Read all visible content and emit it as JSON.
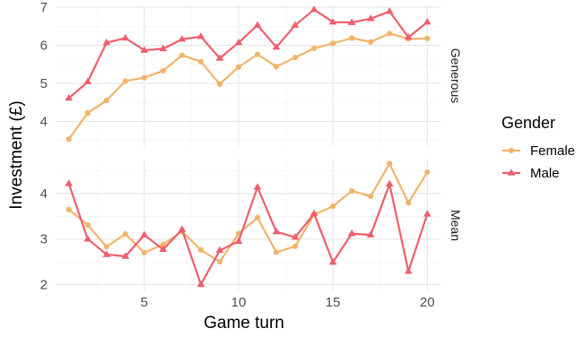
{
  "chart_data": {
    "type": "line",
    "xlabel": "Game turn",
    "ylabel": "Investment (£)",
    "x_ticks": [
      5,
      10,
      15,
      20
    ],
    "xlim": [
      0.3,
      20.7
    ],
    "legend": {
      "title": "Gender",
      "position": "right",
      "entries": [
        {
          "label": "Female",
          "color": "#F0B46B",
          "marker": "circle"
        },
        {
          "label": "Male",
          "color": "#EE5E6B",
          "marker": "triangle"
        }
      ]
    },
    "x": [
      1,
      2,
      3,
      4,
      5,
      6,
      7,
      8,
      9,
      10,
      11,
      12,
      13,
      14,
      15,
      16,
      17,
      18,
      19,
      20
    ],
    "panels": [
      {
        "strip": "Generous",
        "ylim": [
          3.35,
          7.05
        ],
        "y_ticks": [
          4,
          5,
          6,
          7
        ],
        "series": [
          {
            "name": "Female",
            "values": [
              3.53,
              4.22,
              4.55,
              5.06,
              5.15,
              5.33,
              5.74,
              5.57,
              4.98,
              5.43,
              5.76,
              5.44,
              5.68,
              5.92,
              6.05,
              6.19,
              6.09,
              6.31,
              6.17,
              6.18
            ]
          },
          {
            "name": "Male",
            "values": [
              4.61,
              5.04,
              6.07,
              6.19,
              5.87,
              5.91,
              6.16,
              6.23,
              5.66,
              6.07,
              6.53,
              5.95,
              6.53,
              6.94,
              6.61,
              6.6,
              6.7,
              6.89,
              6.21,
              6.61
            ]
          }
        ]
      },
      {
        "strip": "Mean",
        "ylim": [
          1.85,
          4.75
        ],
        "y_ticks": [
          2,
          3,
          4
        ],
        "series": [
          {
            "name": "Female",
            "values": [
              3.65,
              3.31,
              2.83,
              3.11,
              2.7,
              2.88,
              3.17,
              2.76,
              2.5,
              3.12,
              3.47,
              2.71,
              2.84,
              3.54,
              3.72,
              4.06,
              3.94,
              4.66,
              3.8,
              4.47
            ]
          },
          {
            "name": "Male",
            "values": [
              4.22,
              3.0,
              2.66,
              2.62,
              3.09,
              2.77,
              3.21,
              2.0,
              2.75,
              2.95,
              4.14,
              3.16,
              3.04,
              3.56,
              2.49,
              3.12,
              3.09,
              4.21,
              2.29,
              3.55
            ]
          }
        ]
      }
    ]
  }
}
